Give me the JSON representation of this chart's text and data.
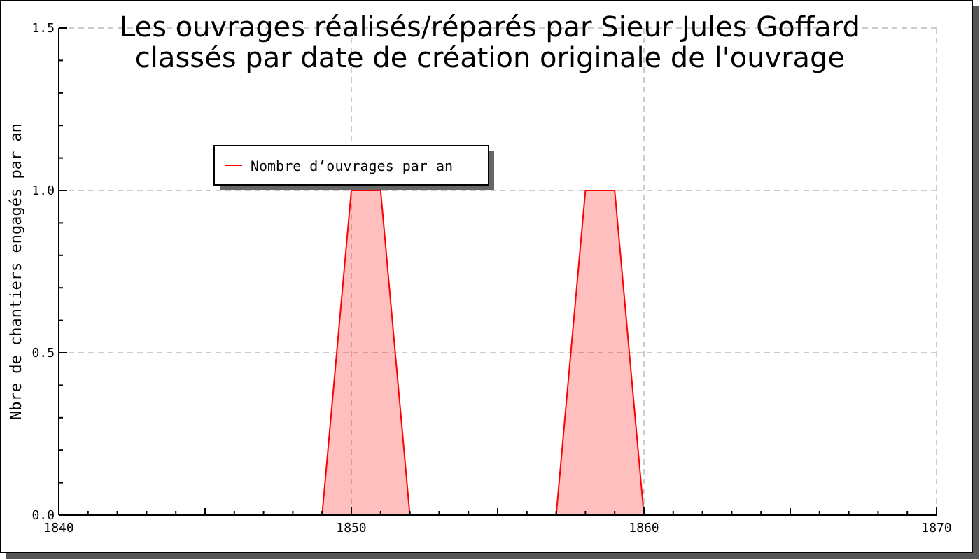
{
  "chart_data": {
    "type": "area",
    "title": "Les ouvrages réalisés/réparés par Sieur Jules Goffard\nclassés par date de création originale de l'ouvrage",
    "ylabel": "Nbre de chantiers engagés par an",
    "x": [
      1840,
      1841,
      1842,
      1843,
      1844,
      1845,
      1846,
      1847,
      1848,
      1849,
      1850,
      1851,
      1852,
      1853,
      1854,
      1855,
      1856,
      1857,
      1858,
      1859,
      1860,
      1861,
      1862,
      1863,
      1864,
      1865,
      1866,
      1867,
      1868,
      1869,
      1870
    ],
    "series": [
      {
        "name": "Nombre d’ouvrages par an",
        "color": "#ff0000",
        "values": [
          0,
          0,
          0,
          0,
          0,
          0,
          0,
          0,
          0,
          0,
          1,
          1,
          0,
          0,
          0,
          0,
          0,
          0,
          1,
          1,
          0,
          0,
          0,
          0,
          0,
          0,
          0,
          0,
          0,
          0,
          0
        ]
      }
    ],
    "xlim": [
      1840,
      1870
    ],
    "ylim": [
      0,
      1.5
    ],
    "xticks": [
      1840,
      {
        "value": 1841,
        "label": null
      },
      {
        "value": 1842,
        "label": null
      },
      {
        "value": 1843,
        "label": null
      },
      {
        "value": 1844,
        "label": null
      },
      {
        "value": 1845,
        "label": null
      },
      {
        "value": 1846,
        "label": null
      },
      {
        "value": 1847,
        "label": null
      },
      {
        "value": 1848,
        "label": null
      },
      {
        "value": 1849,
        "label": null
      },
      1850,
      {
        "value": 1851,
        "label": null
      },
      {
        "value": 1852,
        "label": null
      },
      {
        "value": 1853,
        "label": null
      },
      {
        "value": 1854,
        "label": null
      },
      {
        "value": 1855,
        "label": null
      },
      {
        "value": 1856,
        "label": null
      },
      {
        "value": 1857,
        "label": null
      },
      {
        "value": 1858,
        "label": null
      },
      {
        "value": 1859,
        "label": null
      },
      1860,
      {
        "value": 1861,
        "label": null
      },
      {
        "value": 1862,
        "label": null
      },
      {
        "value": 1863,
        "label": null
      },
      {
        "value": 1864,
        "label": null
      },
      {
        "value": 1865,
        "label": null
      },
      {
        "value": 1866,
        "label": null
      },
      {
        "value": 1867,
        "label": null
      },
      {
        "value": 1868,
        "label": null
      },
      {
        "value": 1869,
        "label": null
      },
      1870
    ],
    "yticks": [
      {
        "value": 0,
        "label": "0.0"
      },
      {
        "value": 0.1,
        "label": null
      },
      {
        "value": 0.2,
        "label": null
      },
      {
        "value": 0.3,
        "label": null
      },
      {
        "value": 0.4,
        "label": null
      },
      {
        "value": 0.5,
        "label": "0.5"
      },
      {
        "value": 0.6,
        "label": null
      },
      {
        "value": 0.7,
        "label": null
      },
      {
        "value": 0.8,
        "label": null
      },
      {
        "value": 0.9,
        "label": null
      },
      {
        "value": 1,
        "label": "1.0"
      },
      {
        "value": 1.1,
        "label": null
      },
      {
        "value": 1.2,
        "label": null
      },
      {
        "value": 1.3,
        "label": null
      },
      {
        "value": 1.4,
        "label": null
      },
      {
        "value": 1.5,
        "label": "1.5"
      }
    ],
    "grid": true,
    "legend": "top left",
    "marker": "none",
    "line_style": "solid"
  }
}
